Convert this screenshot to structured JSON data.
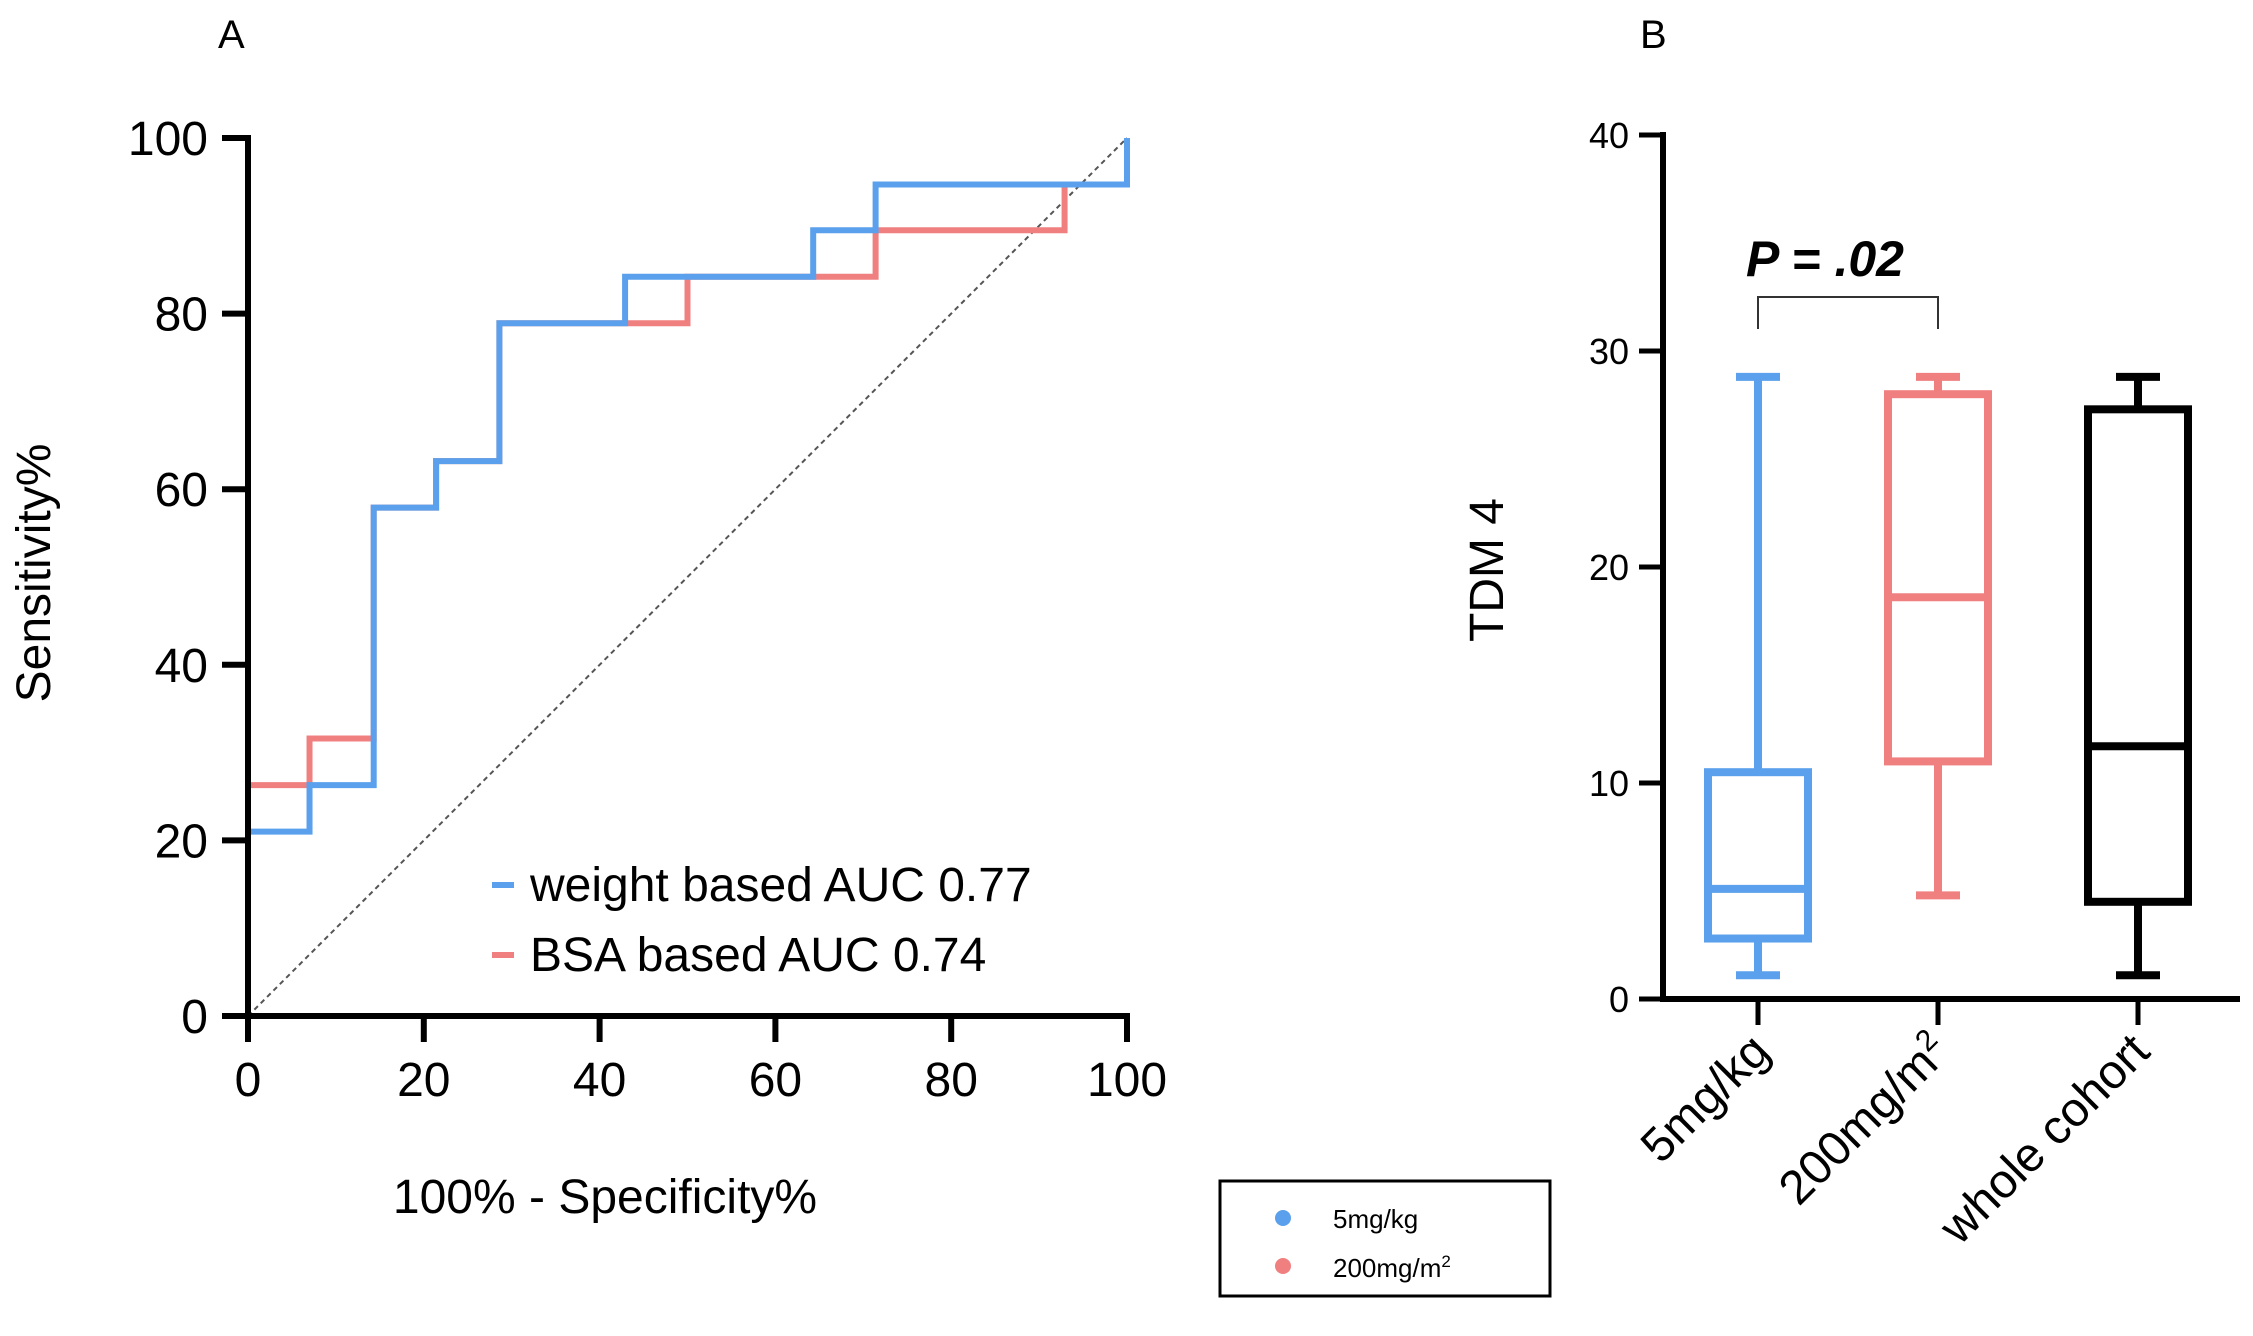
{
  "colors": {
    "weight": "#5aa0ec",
    "bsa": "#f08080",
    "black": "#000000",
    "reference": "#555555"
  },
  "chart_data": [
    {
      "panel": "A",
      "type": "line",
      "xlabel": "100% - Specificity%",
      "ylabel": "Sensitivity%",
      "xlim": [
        0,
        100
      ],
      "ylim": [
        0,
        100
      ],
      "xticks": [
        0,
        20,
        40,
        60,
        80,
        100
      ],
      "yticks": [
        0,
        20,
        40,
        60,
        80,
        100
      ],
      "xtick_labels": [
        "0",
        "20",
        "40",
        "60",
        "80",
        "100"
      ],
      "ytick_labels": [
        "0",
        "20",
        "40",
        "60",
        "80",
        "100"
      ],
      "reference_line": [
        [
          0,
          0
        ],
        [
          100,
          100
        ]
      ],
      "legend_placement": "bottom-right",
      "series": [
        {
          "name": "weight based AUC 0.77",
          "color": "#5aa0ec",
          "points": [
            [
              0,
              0
            ],
            [
              0,
              21
            ],
            [
              7,
              21
            ],
            [
              7,
              26.3
            ],
            [
              14.3,
              26.3
            ],
            [
              14.3,
              57.9
            ],
            [
              21.4,
              57.9
            ],
            [
              21.4,
              63.2
            ],
            [
              28.6,
              63.2
            ],
            [
              28.6,
              78.9
            ],
            [
              42.9,
              78.9
            ],
            [
              42.9,
              84.2
            ],
            [
              64.3,
              84.2
            ],
            [
              64.3,
              89.5
            ],
            [
              71.4,
              89.5
            ],
            [
              71.4,
              94.7
            ],
            [
              100,
              94.7
            ],
            [
              100,
              100
            ]
          ]
        },
        {
          "name": "BSA based AUC 0.74",
          "color": "#f08080",
          "points": [
            [
              0,
              0
            ],
            [
              0,
              26.3
            ],
            [
              7,
              26.3
            ],
            [
              7,
              31.6
            ],
            [
              14.3,
              31.6
            ],
            [
              14.3,
              57.9
            ],
            [
              21.4,
              57.9
            ],
            [
              21.4,
              63.2
            ],
            [
              28.6,
              63.2
            ],
            [
              28.6,
              78.9
            ],
            [
              50,
              78.9
            ],
            [
              50,
              84.2
            ],
            [
              64.3,
              84.2
            ],
            [
              64.3,
              84.2
            ],
            [
              71.4,
              84.2
            ],
            [
              71.4,
              89.5
            ],
            [
              92.9,
              89.5
            ],
            [
              92.9,
              94.7
            ],
            [
              100,
              94.7
            ],
            [
              100,
              100
            ]
          ]
        }
      ]
    },
    {
      "panel": "B",
      "type": "box",
      "ylabel": "TDM 4",
      "ylim": [
        0,
        40
      ],
      "yticks": [
        0,
        10,
        20,
        30,
        40
      ],
      "ytick_labels": [
        "0",
        "10",
        "20",
        "30",
        "40"
      ],
      "categories": [
        "5mg/kg",
        "200mg/m",
        "whole cohort"
      ],
      "category_superscripts": [
        "",
        "2",
        ""
      ],
      "boxes": [
        {
          "category": "5mg/kg",
          "color": "#5aa0ec",
          "min": 1.1,
          "q1": 2.8,
          "median": 5.1,
          "q3": 10.5,
          "max": 28.8
        },
        {
          "category": "200mg/m2",
          "color": "#f08080",
          "min": 4.8,
          "q1": 11.0,
          "median": 18.6,
          "q3": 28.0,
          "max": 28.8
        },
        {
          "category": "whole cohort",
          "color": "#000000",
          "min": 1.1,
          "q1": 4.5,
          "median": 11.7,
          "q3": 27.3,
          "max": 28.8
        }
      ],
      "comparison": {
        "between": [
          0,
          1
        ],
        "label": "P = .02"
      },
      "legend": [
        {
          "label": "5mg/kg",
          "superscript": "",
          "color": "#5aa0ec"
        },
        {
          "label": "200mg/m",
          "superscript": "2",
          "color": "#f08080"
        }
      ]
    }
  ]
}
